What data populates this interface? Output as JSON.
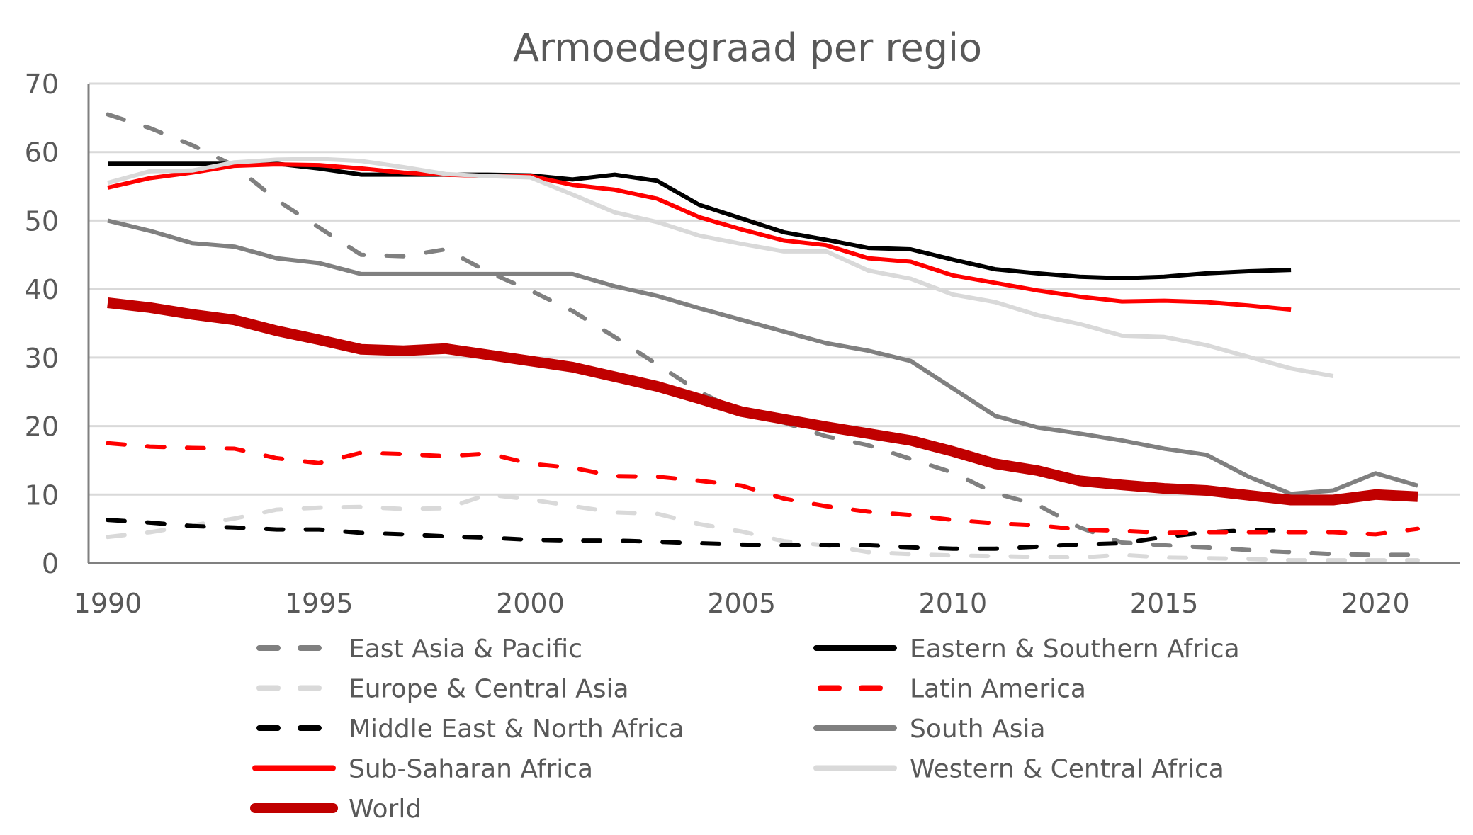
{
  "chart_data": {
    "type": "line",
    "title": "Armoedegraad per regio",
    "xlabel": "",
    "ylabel": "",
    "ylim": [
      0,
      70
    ],
    "xlim": [
      1990,
      2021
    ],
    "yticks": [
      "0",
      "10",
      "20",
      "30",
      "40",
      "50",
      "60",
      "70"
    ],
    "xticks": [
      "1990",
      "1995",
      "2000",
      "2005",
      "2010",
      "2015",
      "2020"
    ],
    "grid": true,
    "legend_position": "bottom",
    "x": [
      1990,
      1991,
      1992,
      1993,
      1994,
      1995,
      1996,
      1997,
      1998,
      1999,
      2000,
      2001,
      2002,
      2003,
      2004,
      2005,
      2006,
      2007,
      2008,
      2009,
      2010,
      2011,
      2012,
      2013,
      2014,
      2015,
      2016,
      2017,
      2018,
      2019,
      2020,
      2021
    ],
    "series": [
      {
        "name": "East Asia & Pacific",
        "color": "#808080",
        "dash": "dashed",
        "width": "normal",
        "values": [
          65.5,
          63.5,
          61,
          58,
          53,
          49,
          45,
          44.8,
          45.8,
          42.5,
          39.8,
          36.8,
          33,
          29,
          25,
          22,
          20.5,
          18.5,
          17.2,
          15.2,
          13.2,
          10.2,
          8.5,
          5.2,
          3,
          2.6,
          2.3,
          1.9,
          1.6,
          1.3,
          1.2,
          1.2
        ]
      },
      {
        "name": "Europe & Central Asia",
        "color": "#d9d9d9",
        "dash": "dashed",
        "width": "normal",
        "values": [
          3.8,
          4.5,
          5.5,
          6.5,
          7.8,
          8.1,
          8.2,
          7.9,
          8,
          10,
          9.3,
          8.3,
          7.4,
          7.2,
          5.7,
          4.6,
          3.2,
          2.6,
          1.6,
          1.3,
          1.1,
          1,
          0.9,
          0.8,
          1.2,
          0.8,
          0.7,
          0.6,
          0.4,
          0.4,
          0.4,
          0.4
        ]
      },
      {
        "name": "Middle East & North Africa",
        "color": "#000000",
        "dash": "dashed",
        "width": "normal",
        "values": [
          6.3,
          5.9,
          5.4,
          5.2,
          4.9,
          4.9,
          4.4,
          4.2,
          3.9,
          3.7,
          3.4,
          3.3,
          3.3,
          3.1,
          2.9,
          2.7,
          2.6,
          2.6,
          2.6,
          2.3,
          2.1,
          2.1,
          2.4,
          2.7,
          2.9,
          3.8,
          4.5,
          4.8,
          4.8,
          null,
          null,
          null
        ]
      },
      {
        "name": "Latin America",
        "color": "#ff0000",
        "dash": "dashed",
        "width": "normal",
        "values": [
          17.5,
          17,
          16.8,
          16.7,
          15.3,
          14.6,
          16.1,
          15.9,
          15.6,
          16,
          14.5,
          13.9,
          12.7,
          12.6,
          12,
          11.3,
          9.4,
          8.3,
          7.5,
          7,
          6.3,
          5.8,
          5.5,
          4.9,
          4.7,
          4.4,
          4.5,
          4.5,
          4.5,
          4.5,
          4.2,
          5
        ]
      },
      {
        "name": "Eastern & Southern Africa",
        "color": "#000000",
        "dash": "solid",
        "width": "normal",
        "values": [
          58.3,
          58.3,
          58.3,
          58.3,
          58.3,
          57.6,
          56.7,
          56.7,
          56.7,
          56.7,
          56.6,
          56,
          56.7,
          55.8,
          52.3,
          50.3,
          48.3,
          47.2,
          46,
          45.8,
          44.3,
          42.9,
          42.3,
          41.8,
          41.6,
          41.8,
          42.3,
          42.6,
          42.8,
          null,
          null,
          null
        ]
      },
      {
        "name": "South Asia",
        "color": "#808080",
        "dash": "solid",
        "width": "normal",
        "values": [
          50,
          48.5,
          46.7,
          46.2,
          44.5,
          43.8,
          42.2,
          42.2,
          42.2,
          42.2,
          42.2,
          42.2,
          40.4,
          39,
          37.2,
          35.5,
          33.8,
          32.1,
          31,
          29.5,
          25.5,
          21.5,
          19.8,
          18.9,
          17.9,
          16.7,
          15.8,
          12.6,
          10.1,
          10.6,
          13.1,
          11.3
        ]
      },
      {
        "name": "Sub-Saharan Africa",
        "color": "#ff0000",
        "dash": "solid",
        "width": "normal",
        "values": [
          54.8,
          56.2,
          57,
          58,
          58.2,
          58.1,
          57.6,
          57,
          56.7,
          56.5,
          56.5,
          55.2,
          54.5,
          53.2,
          50.5,
          48.7,
          47.1,
          46.4,
          44.5,
          44,
          42,
          40.9,
          39.8,
          38.9,
          38.2,
          38.3,
          38.1,
          37.6,
          37,
          null,
          null,
          null
        ]
      },
      {
        "name": "Western & Central Africa",
        "color": "#d9d9d9",
        "dash": "solid",
        "width": "normal",
        "values": [
          55.5,
          57.2,
          57.3,
          58.5,
          58.9,
          59,
          58.7,
          57.8,
          56.8,
          56.5,
          56.3,
          53.8,
          51.2,
          49.8,
          47.8,
          46.6,
          45.5,
          45.5,
          42.7,
          41.5,
          39.2,
          38.1,
          36.2,
          34.9,
          33.2,
          33,
          31.8,
          30.1,
          28.4,
          27.3,
          null,
          null
        ]
      },
      {
        "name": "World",
        "color": "#c00000",
        "dash": "solid",
        "width": "thick",
        "values": [
          38,
          37.3,
          36.3,
          35.5,
          33.9,
          32.6,
          31.2,
          31,
          31.3,
          30.4,
          29.5,
          28.6,
          27.2,
          25.8,
          24,
          22.1,
          21,
          19.9,
          18.9,
          17.9,
          16.3,
          14.5,
          13.5,
          12,
          11.4,
          10.9,
          10.6,
          9.9,
          9.2,
          9.2,
          10,
          9.7
        ]
      }
    ]
  }
}
